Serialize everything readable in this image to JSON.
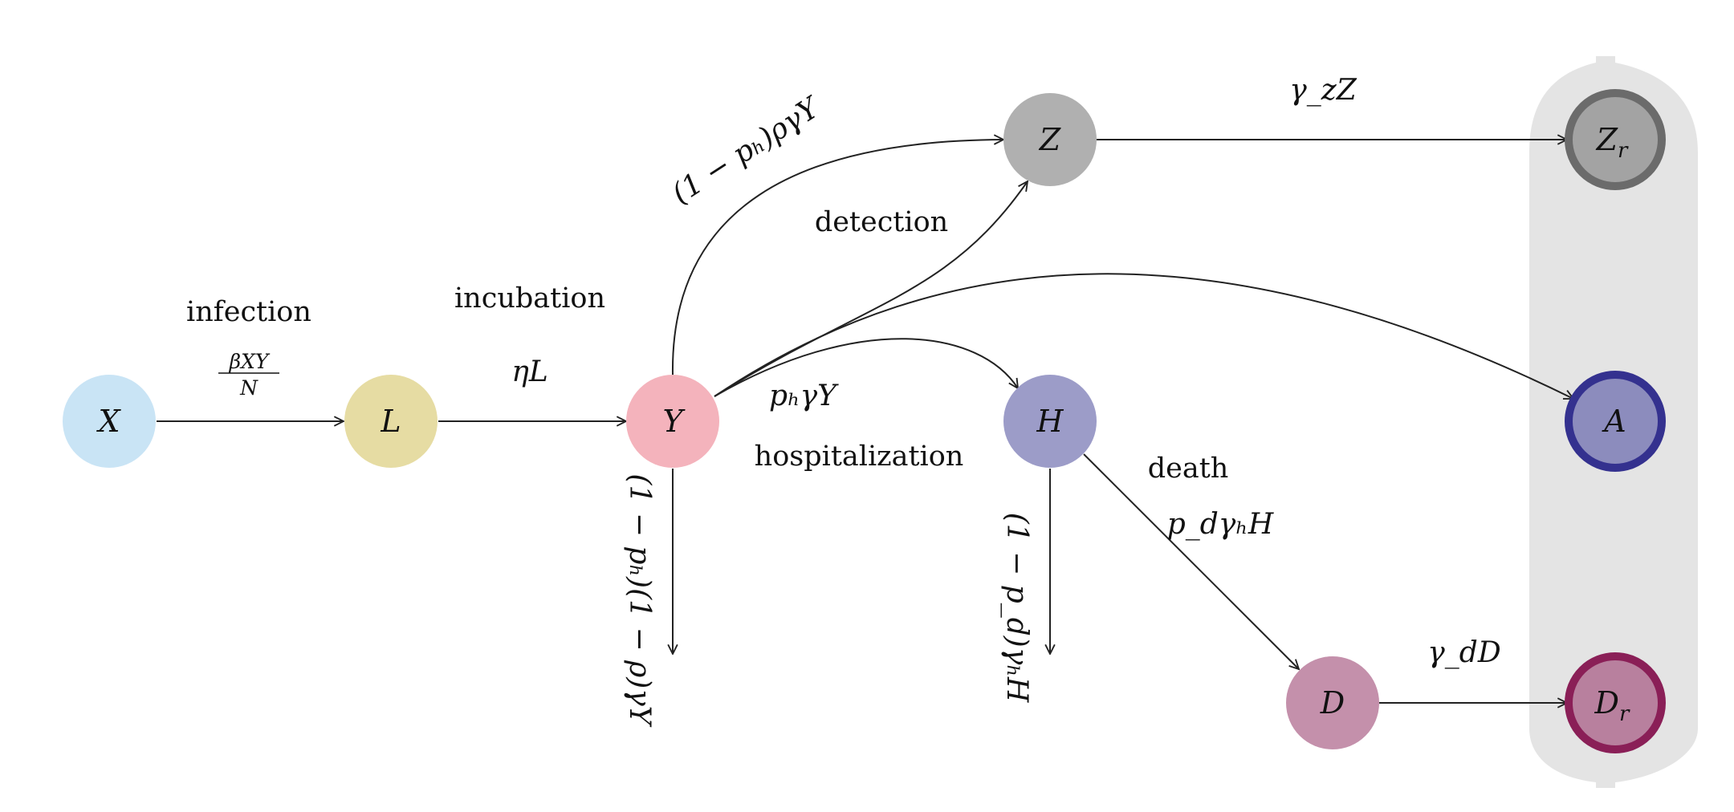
{
  "nodes": {
    "X": {
      "label": "X",
      "color": "#c9e4f5"
    },
    "L": {
      "label": "L",
      "color": "#e6dca3"
    },
    "Y": {
      "label": "Y",
      "color": "#f4b3bc"
    },
    "Z": {
      "label": "Z",
      "color": "#b0b0b0"
    },
    "H": {
      "label": "H",
      "color": "#9c9cc8"
    },
    "D": {
      "label": "D",
      "color": "#c490ab"
    },
    "Zr": {
      "label": "Z",
      "sub": "r",
      "color": "#a3a3a3",
      "ring": "#6b6b6b"
    },
    "A": {
      "label": "A",
      "color": "#8c8cbd",
      "ring": "#34318f"
    },
    "Dr": {
      "label": "D",
      "sub": "r",
      "color": "#b8809e",
      "ring": "#8a1f57"
    }
  },
  "absorbing_panel_color": "#e4e4e4",
  "process_labels": {
    "infection": "infection",
    "incubation": "incubation",
    "detection": "detection",
    "hospitalization": "hospitalization",
    "death": "death"
  },
  "rates": {
    "infection_num": "βXY",
    "infection_den": "N",
    "incubation": "ηL",
    "detection": "(1 − pₕ)ργY",
    "hospitalization": "pₕγY",
    "recovery_y": "(1 − pₕ)(1 − ρ)γY",
    "recovery_h": "(1 − p_d)γₕH",
    "death": "p_dγₕH",
    "z_removal": "γ_zZ",
    "d_removal": "γ_dD"
  }
}
